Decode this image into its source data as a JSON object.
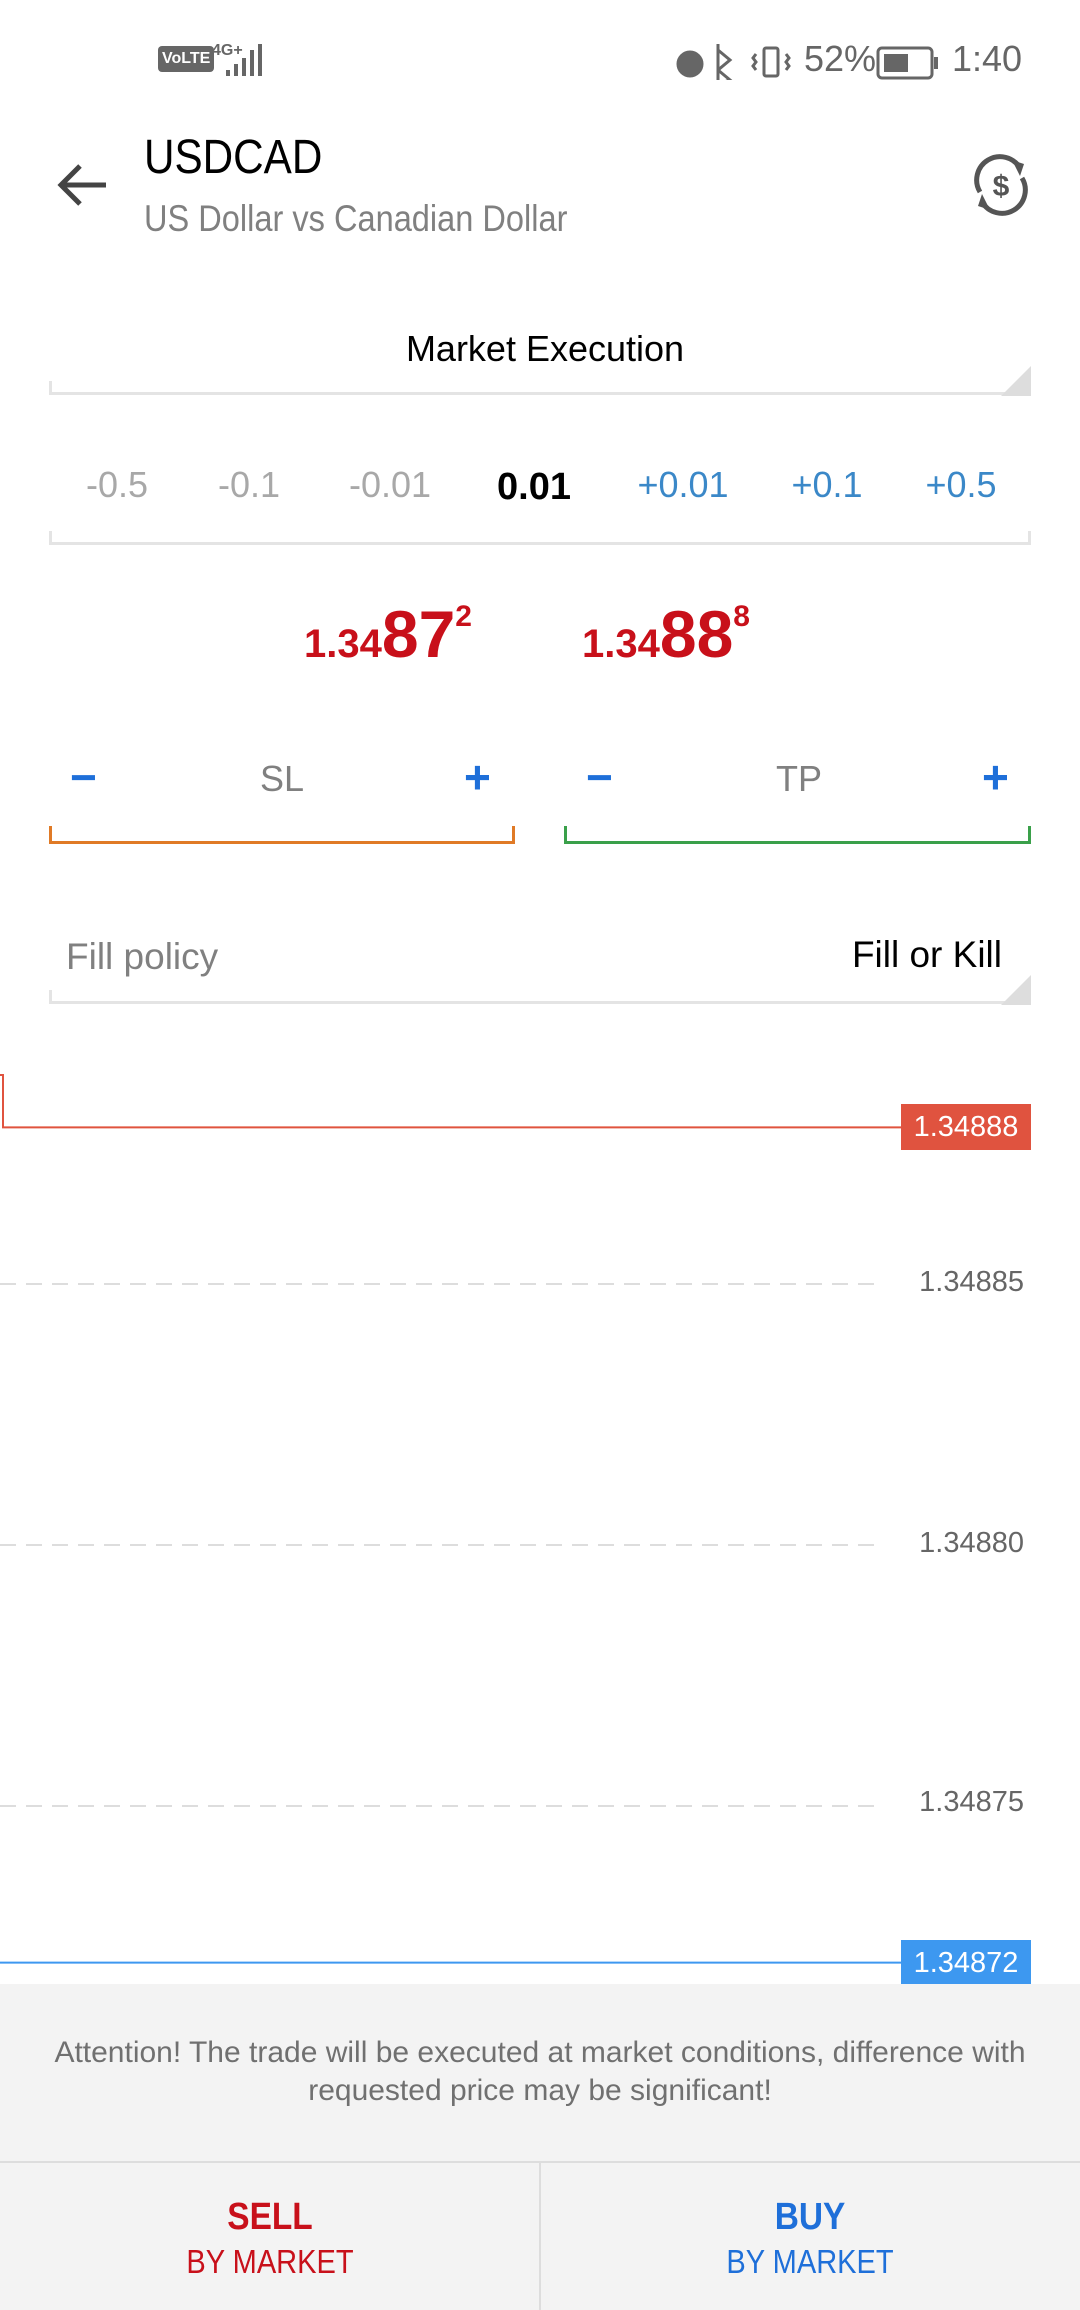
{
  "status_bar": {
    "network": "4G+",
    "volte": "VoLTE",
    "battery": "52%",
    "time": "1:40",
    "icons": [
      "alarm-icon",
      "bluetooth-icon",
      "vibrate-icon",
      "battery-icon",
      "signal-icon"
    ]
  },
  "header": {
    "title": "USDCAD",
    "subtitle": "US Dollar vs Canadian Dollar",
    "back_icon": "arrow-left-icon",
    "action_icon": "currency-exchange-icon"
  },
  "order_type": "Market Execution",
  "volume": {
    "steps": [
      "-0.5",
      "-0.1",
      "-0.01",
      "+0.01",
      "+0.1",
      "+0.5"
    ],
    "value": "0.01"
  },
  "prices": {
    "bid": {
      "small": "1.34",
      "big": "87",
      "sup": "2"
    },
    "ask": {
      "small": "1.34",
      "big": "88",
      "sup": "8"
    }
  },
  "sl": {
    "label": "SL",
    "minus": "−",
    "plus": "+"
  },
  "tp": {
    "label": "TP",
    "minus": "−",
    "plus": "+"
  },
  "fill_policy": {
    "label": "Fill policy",
    "value": "Fill or Kill"
  },
  "chart_data": {
    "type": "line",
    "y_ticks": [
      "1.34885",
      "1.34880",
      "1.34875"
    ],
    "ask_line": 1.34888,
    "ask_label": "1.34888",
    "bid_line": 1.34872,
    "bid_label": "1.34872",
    "colors": {
      "ask": "#e0533f",
      "bid": "#3d98f0"
    }
  },
  "attention": "Attention! The trade will be executed at market conditions, difference with requested price may be significant!",
  "sell": {
    "label": "SELL",
    "sub": "BY MARKET",
    "color": "#c8101a"
  },
  "buy": {
    "label": "BUY",
    "sub": "BY MARKET",
    "color": "#1e6fd9"
  }
}
